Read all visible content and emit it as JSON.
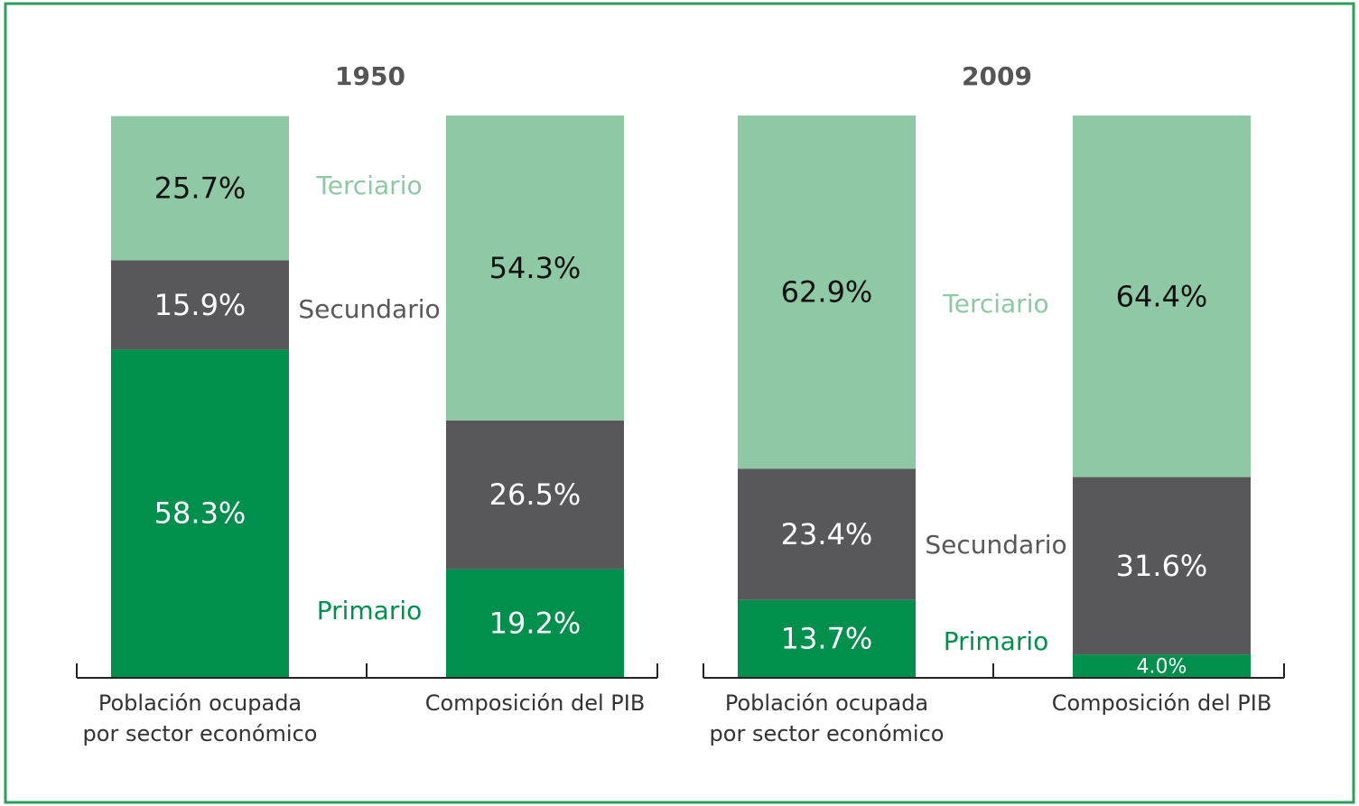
{
  "chart_data": [
    {
      "type": "bar",
      "stacked": true,
      "title": "1950",
      "categories": [
        "Población ocupada por sector económico",
        "Composición del PIB"
      ],
      "ylim": [
        0,
        100
      ],
      "series": [
        {
          "name": "Primario",
          "color": "#008f4c",
          "values": [
            58.3,
            19.2
          ],
          "value_labels": [
            "58.3%",
            "19.2%"
          ]
        },
        {
          "name": "Secundario",
          "color": "#58585a",
          "values": [
            15.9,
            26.5
          ],
          "value_labels": [
            "15.9%",
            "26.5%"
          ]
        },
        {
          "name": "Terciario",
          "color": "#8fc8a4",
          "values": [
            25.7,
            54.3
          ],
          "value_labels": [
            "25.7%",
            "54.3%"
          ]
        }
      ]
    },
    {
      "type": "bar",
      "stacked": true,
      "title": "2009",
      "categories": [
        "Población ocupada por sector económico",
        "Composición del PIB"
      ],
      "ylim": [
        0,
        100
      ],
      "series": [
        {
          "name": "Primario",
          "color": "#008f4c",
          "values": [
            13.7,
            4.0
          ],
          "value_labels": [
            "13.7%",
            "4.0%"
          ]
        },
        {
          "name": "Secundario",
          "color": "#58585a",
          "values": [
            23.4,
            31.6
          ],
          "value_labels": [
            "23.4%",
            "31.6%"
          ]
        },
        {
          "name": "Terciario",
          "color": "#8fc8a4",
          "values": [
            62.9,
            64.4
          ],
          "value_labels": [
            "62.9%",
            "64.4%"
          ]
        }
      ]
    }
  ]
}
